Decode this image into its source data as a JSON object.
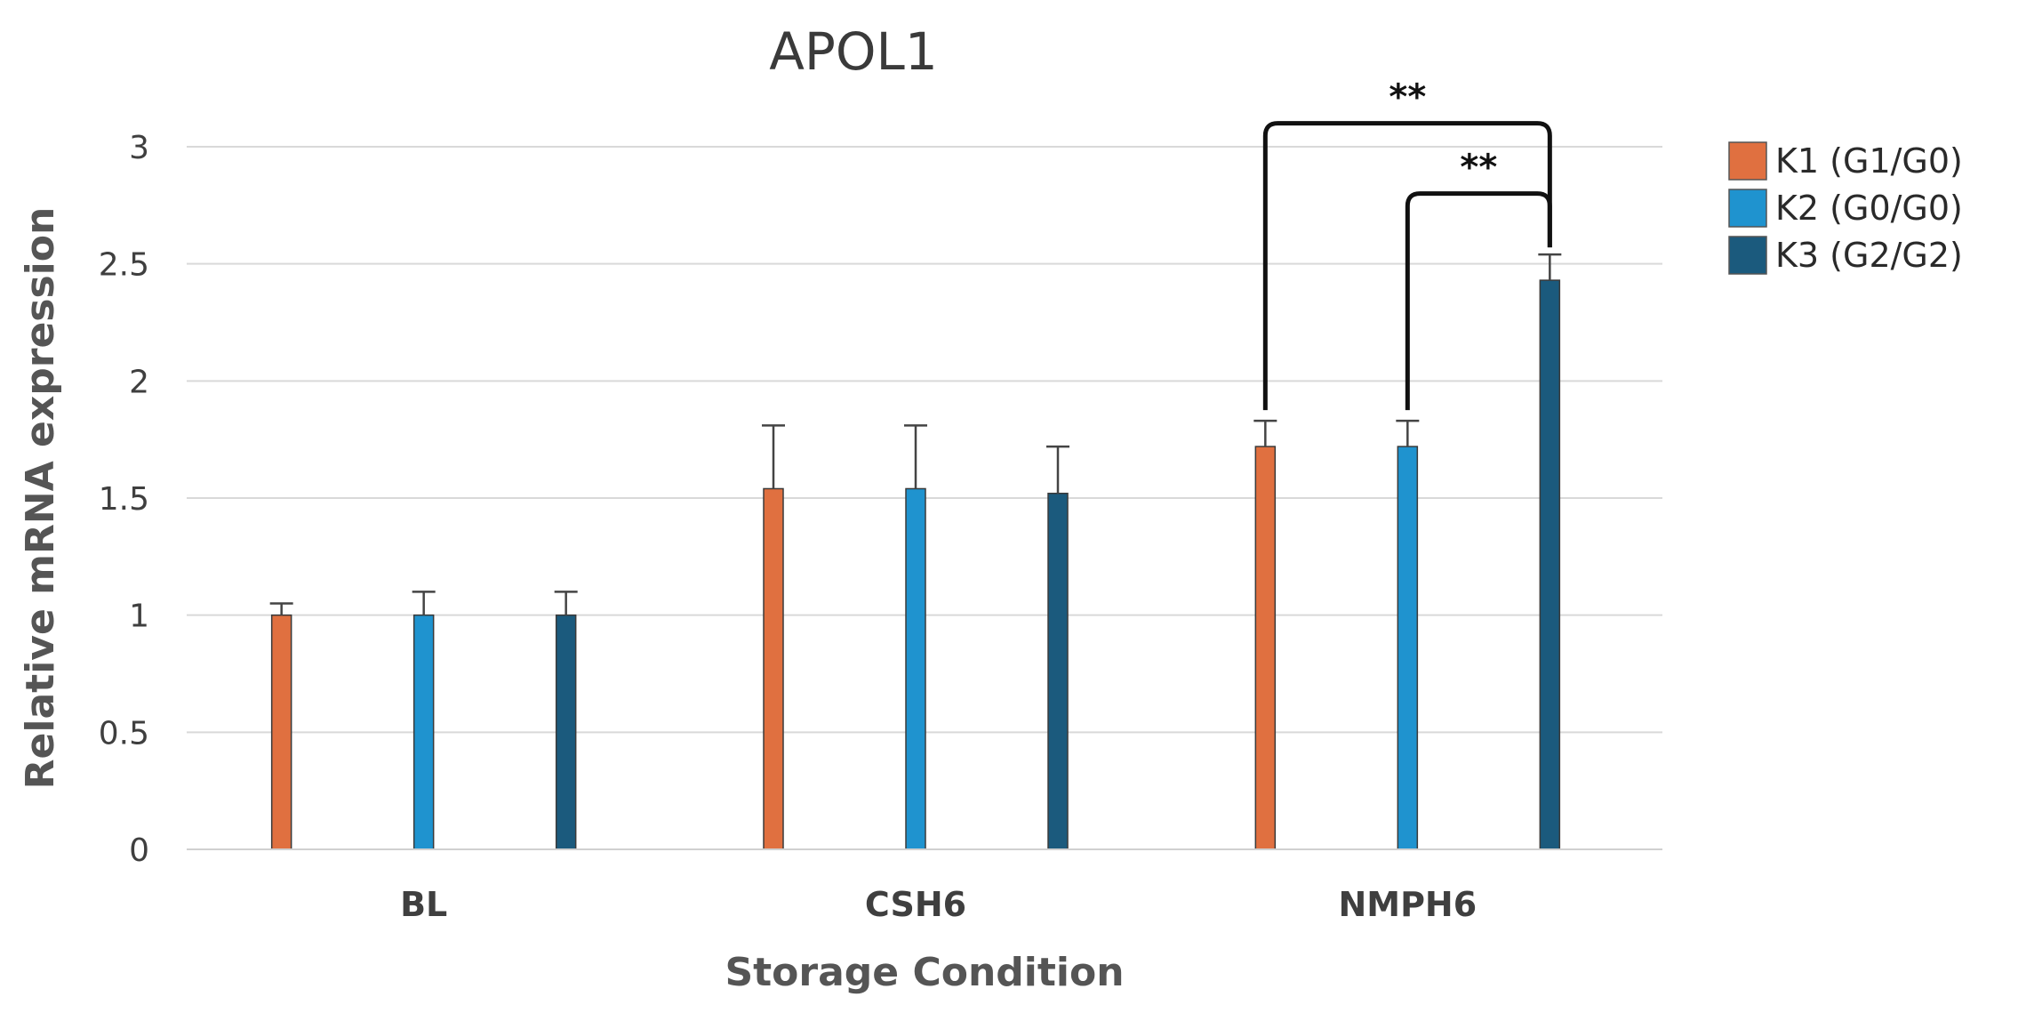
{
  "chart_data": {
    "type": "bar",
    "title": "APOL1",
    "xlabel": "Storage Condition",
    "ylabel": "Relative mRNA expression",
    "ylim": [
      0,
      3
    ],
    "yticks": [
      "0",
      "0.5",
      "1",
      "1.5",
      "2",
      "2.5",
      "3"
    ],
    "categories": [
      "BL",
      "CSH6",
      "NMPH6"
    ],
    "grid": true,
    "legend_position": "right",
    "series": [
      {
        "name": "K1 (G1/G0)",
        "color": "#E07040",
        "values": [
          1.0,
          1.54,
          1.72
        ],
        "errors": [
          0.05,
          0.27,
          0.11
        ]
      },
      {
        "name": "K2 (G0/G0)",
        "color": "#1F93CF",
        "values": [
          1.0,
          1.54,
          1.72
        ],
        "errors": [
          0.1,
          0.27,
          0.11
        ]
      },
      {
        "name": "K3 (G2/G2)",
        "color": "#1B5A7D",
        "values": [
          1.0,
          1.52,
          2.43
        ],
        "errors": [
          0.1,
          0.2,
          0.11
        ]
      }
    ],
    "significance": [
      {
        "category": "NMPH6",
        "from_series": 0,
        "to_series": 2,
        "label": "**",
        "y": 3.1
      },
      {
        "category": "NMPH6",
        "from_series": 1,
        "to_series": 2,
        "label": "**",
        "y": 2.8
      }
    ]
  }
}
